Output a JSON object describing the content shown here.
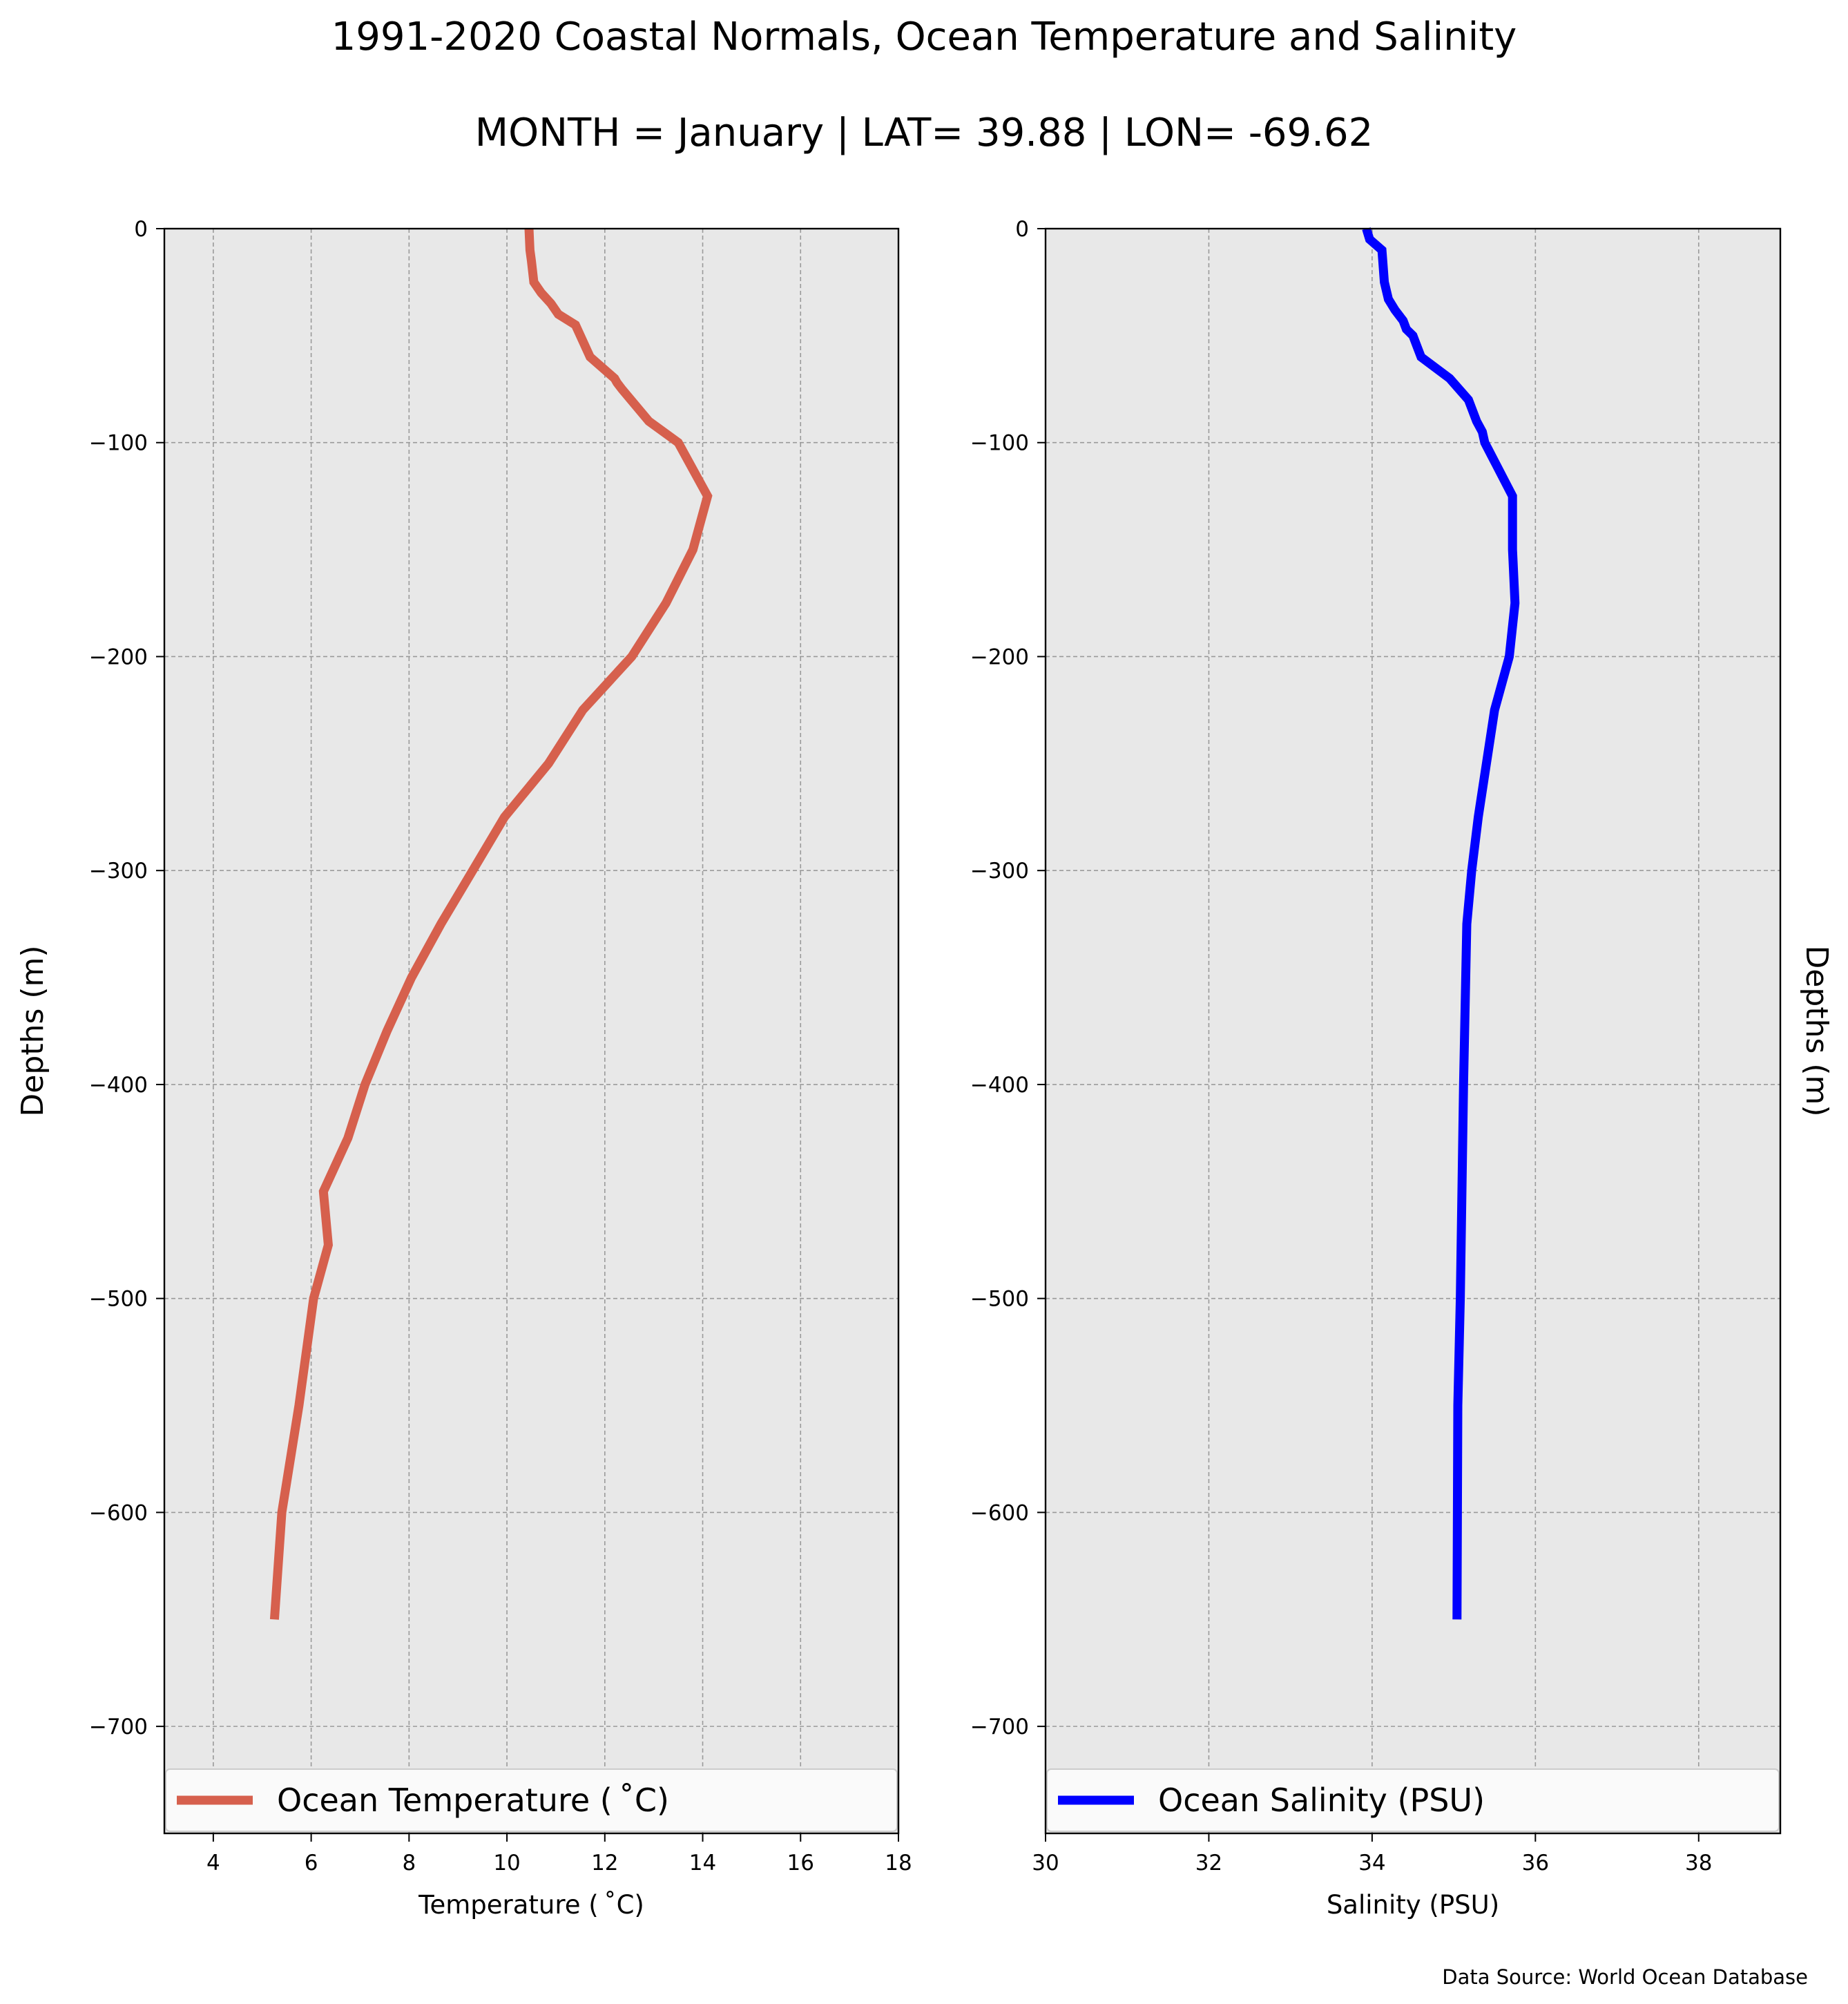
{
  "figure": {
    "title_line1": "1991-2020 Coastal Normals, Ocean Temperature and Salinity",
    "title_line2": "MONTH = January | LAT= 39.88 | LON= -69.62",
    "source": "Data Source: World Ocean Database"
  },
  "chart_data": [
    {
      "type": "line",
      "xlabel": "Temperature ($^\\circ$C)",
      "xlabel_display": "Temperature ( ˚C)",
      "ylabel": "Depths (m)",
      "xlim": [
        3,
        18
      ],
      "ylim": [
        -750,
        0
      ],
      "xticks": [
        4,
        6,
        8,
        10,
        12,
        14,
        16,
        18
      ],
      "xtick_labels": [
        "4",
        "6",
        "8",
        "10",
        "12",
        "14",
        "16",
        "18"
      ],
      "yticks": [
        0,
        -100,
        -200,
        -300,
        -400,
        -500,
        -600,
        -700
      ],
      "ytick_labels": [
        "0",
        "−100",
        "−200",
        "−300",
        "−400",
        "−500",
        "−600",
        "−700"
      ],
      "grid": true,
      "legend_position": "bottom",
      "color": "#d6604d",
      "series": [
        {
          "name": "Ocean Temperature ( ˚C)",
          "x": [
            10.45,
            10.47,
            10.5,
            10.55,
            10.7,
            10.9,
            11.05,
            11.4,
            11.7,
            12.2,
            12.25,
            12.35,
            12.9,
            13.5,
            14.1,
            13.8,
            13.25,
            12.55,
            11.55,
            10.85,
            9.95,
            9.3,
            8.65,
            8.05,
            7.55,
            7.1,
            6.75,
            6.25,
            6.35,
            6.05,
            5.75,
            5.4,
            5.25
          ],
          "y": [
            0,
            -10,
            -15,
            -25,
            -30,
            -35,
            -40,
            -45,
            -60,
            -70,
            -72,
            -75,
            -90,
            -100,
            -125,
            -150,
            -175,
            -200,
            -225,
            -250,
            -275,
            -300,
            -325,
            -350,
            -375,
            -400,
            -425,
            -450,
            -475,
            -500,
            -550,
            -600,
            -650
          ]
        }
      ]
    },
    {
      "type": "line",
      "xlabel": "Salinity (PSU)",
      "ylabel": "Depths (m)",
      "xlim": [
        30,
        39
      ],
      "ylim": [
        -750,
        0
      ],
      "xticks": [
        30,
        32,
        34,
        36,
        38
      ],
      "xtick_labels": [
        "30",
        "32",
        "34",
        "36",
        "38"
      ],
      "yticks": [
        0,
        -100,
        -200,
        -300,
        -400,
        -500,
        -600,
        -700
      ],
      "ytick_labels": [
        "0",
        "−100",
        "−200",
        "−300",
        "−400",
        "−500",
        "−600",
        "−700"
      ],
      "grid": true,
      "legend_position": "bottom",
      "color": "#0000ff",
      "series": [
        {
          "name": "Ocean Salinity (PSU)",
          "x": [
            33.93,
            33.97,
            34.12,
            34.13,
            34.15,
            34.2,
            34.28,
            34.38,
            34.42,
            34.5,
            34.55,
            34.6,
            34.95,
            35.18,
            35.28,
            35.35,
            35.38,
            35.72,
            35.72,
            35.75,
            35.68,
            35.5,
            35.4,
            35.3,
            35.22,
            35.16,
            35.12,
            35.08,
            35.05,
            35.04
          ],
          "y": [
            0,
            -5,
            -10,
            -15,
            -25,
            -33,
            -38,
            -43,
            -47,
            -50,
            -55,
            -60,
            -70,
            -80,
            -90,
            -95,
            -100,
            -125,
            -150,
            -175,
            -200,
            -225,
            -250,
            -275,
            -300,
            -325,
            -400,
            -500,
            -550,
            -650
          ]
        }
      ]
    }
  ]
}
